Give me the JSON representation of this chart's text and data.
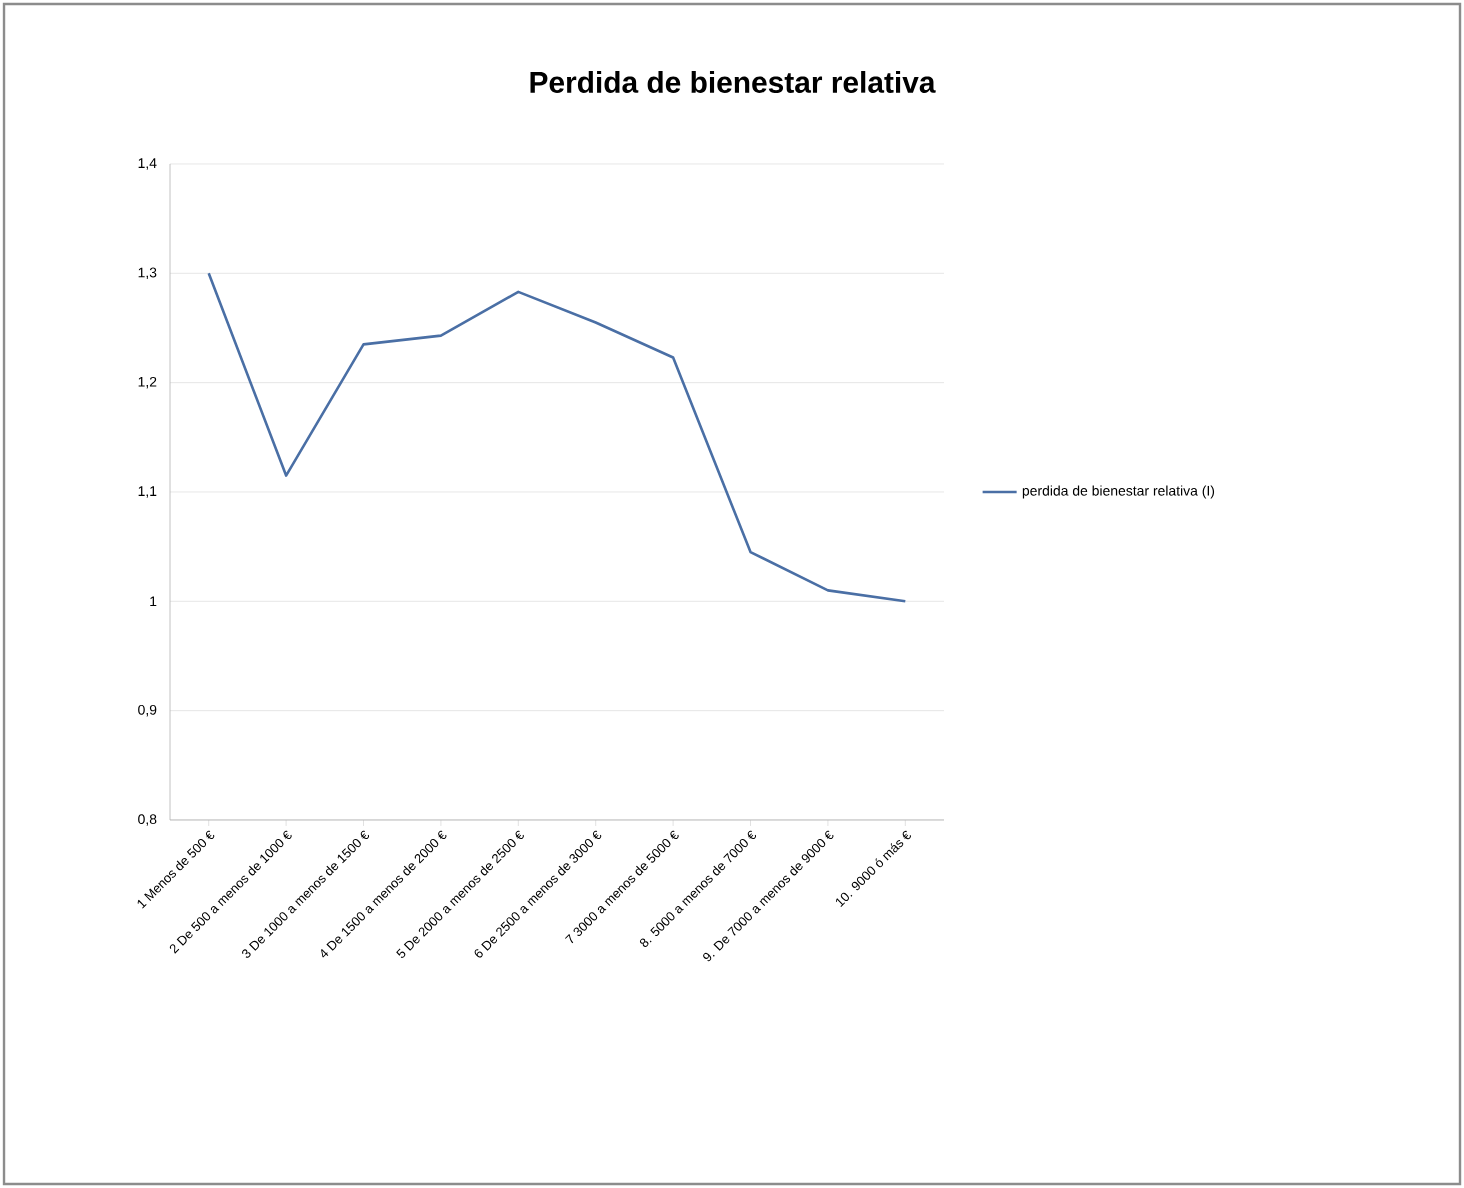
{
  "chart_data": {
    "type": "line",
    "title": "Perdida de bienestar relativa",
    "categories": [
      "1 Menos de 500 €",
      "2 De 500 a menos de 1000 €",
      "3 De 1000 a menos de 1500 €",
      "4 De 1500 a menos de 2000 €",
      "5 De 2000 a menos de 2500 €",
      "6 De 2500 a menos de 3000 €",
      "7 3000 a menos de 5000 €",
      "8. 5000 a menos de 7000 €",
      "9. De 7000 a menos de 9000 €",
      "10. 9000 ó más €"
    ],
    "series": [
      {
        "name": "perdida de bienestar relativa (I)",
        "color": "#4a6fa5",
        "values": [
          1.3,
          1.115,
          1.235,
          1.243,
          1.283,
          1.255,
          1.223,
          1.045,
          1.01,
          1.0
        ]
      }
    ],
    "ylim": [
      0.8,
      1.4
    ],
    "yticks": [
      {
        "value": 0.8,
        "label": "0,8"
      },
      {
        "value": 0.9,
        "label": "0,9"
      },
      1,
      {
        "value": 1.1,
        "label": "1,1"
      },
      {
        "value": 1.2,
        "label": "1,2"
      },
      {
        "value": 1.3,
        "label": "1,3"
      },
      {
        "value": 1.4,
        "label": "1,4"
      }
    ],
    "grid": "y",
    "legend": "right",
    "marker": "none",
    "line_style": "solid"
  }
}
